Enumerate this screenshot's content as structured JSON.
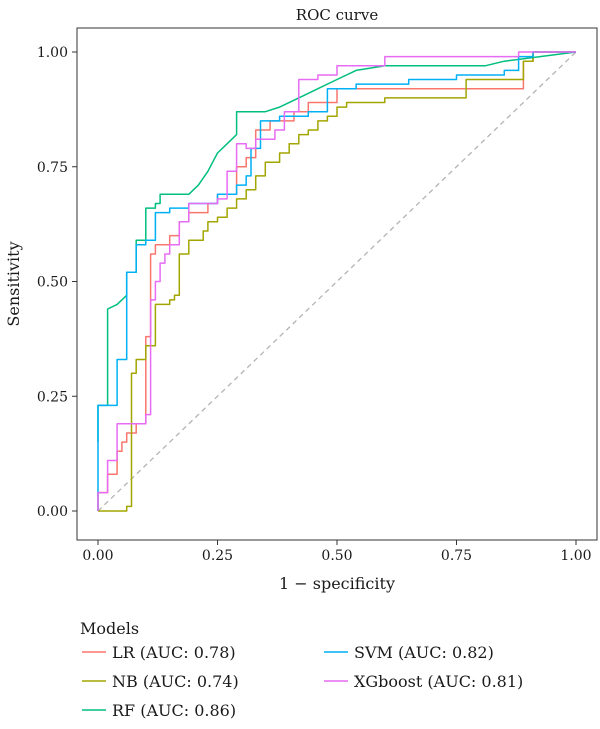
{
  "chart_data": {
    "type": "line",
    "title": "ROC curve",
    "xlabel": "1 − specificity",
    "ylabel": "Sensitivity",
    "xlim": [
      0,
      1
    ],
    "ylim": [
      0,
      1
    ],
    "x_ticks": [
      "0.00",
      "0.25",
      "0.50",
      "0.75",
      "1.00"
    ],
    "y_ticks": [
      "0.00",
      "0.25",
      "0.50",
      "0.75",
      "1.00"
    ],
    "grid": false,
    "reference_line": {
      "from": [
        0,
        0
      ],
      "to": [
        1,
        1
      ],
      "style": "dashed",
      "color": "#b3b3b3"
    },
    "legend": {
      "title": "Models",
      "position": "bottom",
      "columns": 2
    },
    "series": [
      {
        "name": "LR (AUC: 0.78)",
        "color": "#F8766D",
        "points": [
          [
            0,
            0
          ],
          [
            0,
            0.04
          ],
          [
            0.02,
            0.04
          ],
          [
            0.02,
            0.08
          ],
          [
            0.04,
            0.08
          ],
          [
            0.04,
            0.13
          ],
          [
            0.05,
            0.13
          ],
          [
            0.05,
            0.15
          ],
          [
            0.06,
            0.15
          ],
          [
            0.06,
            0.17
          ],
          [
            0.08,
            0.17
          ],
          [
            0.08,
            0.19
          ],
          [
            0.1,
            0.19
          ],
          [
            0.1,
            0.38
          ],
          [
            0.11,
            0.38
          ],
          [
            0.11,
            0.56
          ],
          [
            0.12,
            0.56
          ],
          [
            0.12,
            0.58
          ],
          [
            0.15,
            0.58
          ],
          [
            0.15,
            0.6
          ],
          [
            0.17,
            0.6
          ],
          [
            0.17,
            0.63
          ],
          [
            0.19,
            0.63
          ],
          [
            0.19,
            0.65
          ],
          [
            0.23,
            0.65
          ],
          [
            0.23,
            0.67
          ],
          [
            0.25,
            0.67
          ],
          [
            0.25,
            0.69
          ],
          [
            0.29,
            0.69
          ],
          [
            0.29,
            0.75
          ],
          [
            0.31,
            0.75
          ],
          [
            0.31,
            0.77
          ],
          [
            0.33,
            0.77
          ],
          [
            0.33,
            0.83
          ],
          [
            0.36,
            0.83
          ],
          [
            0.36,
            0.85
          ],
          [
            0.41,
            0.85
          ],
          [
            0.41,
            0.87
          ],
          [
            0.44,
            0.87
          ],
          [
            0.44,
            0.89
          ],
          [
            0.5,
            0.89
          ],
          [
            0.5,
            0.92
          ],
          [
            0.89,
            0.92
          ],
          [
            0.89,
            0.98
          ],
          [
            0.91,
            0.98
          ],
          [
            0.91,
            1
          ],
          [
            1,
            1
          ]
        ]
      },
      {
        "name": "NB (AUC: 0.74)",
        "color": "#A3A500",
        "points": [
          [
            0,
            0
          ],
          [
            0.06,
            0
          ],
          [
            0.06,
            0.01
          ],
          [
            0.07,
            0.01
          ],
          [
            0.07,
            0.3
          ],
          [
            0.08,
            0.3
          ],
          [
            0.08,
            0.33
          ],
          [
            0.1,
            0.33
          ],
          [
            0.1,
            0.36
          ],
          [
            0.12,
            0.36
          ],
          [
            0.12,
            0.45
          ],
          [
            0.15,
            0.45
          ],
          [
            0.15,
            0.46
          ],
          [
            0.16,
            0.46
          ],
          [
            0.16,
            0.47
          ],
          [
            0.17,
            0.47
          ],
          [
            0.17,
            0.56
          ],
          [
            0.19,
            0.56
          ],
          [
            0.19,
            0.59
          ],
          [
            0.22,
            0.59
          ],
          [
            0.22,
            0.61
          ],
          [
            0.23,
            0.61
          ],
          [
            0.23,
            0.63
          ],
          [
            0.25,
            0.63
          ],
          [
            0.25,
            0.64
          ],
          [
            0.27,
            0.64
          ],
          [
            0.27,
            0.66
          ],
          [
            0.29,
            0.66
          ],
          [
            0.29,
            0.68
          ],
          [
            0.31,
            0.68
          ],
          [
            0.31,
            0.7
          ],
          [
            0.33,
            0.7
          ],
          [
            0.33,
            0.73
          ],
          [
            0.35,
            0.73
          ],
          [
            0.35,
            0.76
          ],
          [
            0.38,
            0.76
          ],
          [
            0.38,
            0.78
          ],
          [
            0.4,
            0.78
          ],
          [
            0.4,
            0.8
          ],
          [
            0.42,
            0.8
          ],
          [
            0.42,
            0.82
          ],
          [
            0.44,
            0.82
          ],
          [
            0.44,
            0.83
          ],
          [
            0.46,
            0.83
          ],
          [
            0.46,
            0.85
          ],
          [
            0.48,
            0.85
          ],
          [
            0.48,
            0.86
          ],
          [
            0.5,
            0.86
          ],
          [
            0.5,
            0.88
          ],
          [
            0.52,
            0.88
          ],
          [
            0.52,
            0.89
          ],
          [
            0.6,
            0.89
          ],
          [
            0.6,
            0.9
          ],
          [
            0.77,
            0.9
          ],
          [
            0.77,
            0.94
          ],
          [
            0.89,
            0.94
          ],
          [
            0.89,
            0.98
          ],
          [
            0.91,
            0.98
          ],
          [
            0.91,
            1
          ],
          [
            1,
            1
          ]
        ]
      },
      {
        "name": "RF (AUC: 0.86)",
        "color": "#00BF7D",
        "points": [
          [
            0,
            0.15
          ],
          [
            0,
            0.23
          ],
          [
            0.02,
            0.23
          ],
          [
            0.02,
            0.44
          ],
          [
            0.04,
            0.45
          ],
          [
            0.06,
            0.47
          ],
          [
            0.06,
            0.52
          ],
          [
            0.08,
            0.52
          ],
          [
            0.08,
            0.59
          ],
          [
            0.1,
            0.59
          ],
          [
            0.1,
            0.66
          ],
          [
            0.12,
            0.66
          ],
          [
            0.12,
            0.67
          ],
          [
            0.13,
            0.67
          ],
          [
            0.13,
            0.69
          ],
          [
            0.19,
            0.69
          ],
          [
            0.21,
            0.71
          ],
          [
            0.23,
            0.74
          ],
          [
            0.25,
            0.78
          ],
          [
            0.27,
            0.8
          ],
          [
            0.29,
            0.82
          ],
          [
            0.29,
            0.87
          ],
          [
            0.35,
            0.87
          ],
          [
            0.38,
            0.88
          ],
          [
            0.42,
            0.9
          ],
          [
            0.46,
            0.92
          ],
          [
            0.5,
            0.94
          ],
          [
            0.54,
            0.96
          ],
          [
            0.6,
            0.97
          ],
          [
            0.81,
            0.97
          ],
          [
            0.85,
            0.98
          ],
          [
            1,
            1
          ]
        ]
      },
      {
        "name": "SVM (AUC: 0.82)",
        "color": "#00B0F6",
        "points": [
          [
            0,
            0
          ],
          [
            0,
            0.23
          ],
          [
            0.04,
            0.23
          ],
          [
            0.04,
            0.33
          ],
          [
            0.06,
            0.33
          ],
          [
            0.06,
            0.52
          ],
          [
            0.08,
            0.52
          ],
          [
            0.08,
            0.58
          ],
          [
            0.1,
            0.58
          ],
          [
            0.1,
            0.59
          ],
          [
            0.12,
            0.59
          ],
          [
            0.12,
            0.65
          ],
          [
            0.15,
            0.65
          ],
          [
            0.15,
            0.66
          ],
          [
            0.19,
            0.66
          ],
          [
            0.19,
            0.67
          ],
          [
            0.25,
            0.67
          ],
          [
            0.25,
            0.69
          ],
          [
            0.29,
            0.69
          ],
          [
            0.29,
            0.71
          ],
          [
            0.31,
            0.71
          ],
          [
            0.31,
            0.73
          ],
          [
            0.32,
            0.73
          ],
          [
            0.32,
            0.79
          ],
          [
            0.34,
            0.79
          ],
          [
            0.34,
            0.85
          ],
          [
            0.38,
            0.85
          ],
          [
            0.38,
            0.86
          ],
          [
            0.44,
            0.86
          ],
          [
            0.44,
            0.87
          ],
          [
            0.48,
            0.87
          ],
          [
            0.48,
            0.92
          ],
          [
            0.54,
            0.92
          ],
          [
            0.54,
            0.93
          ],
          [
            0.65,
            0.93
          ],
          [
            0.65,
            0.94
          ],
          [
            0.75,
            0.94
          ],
          [
            0.75,
            0.95
          ],
          [
            0.85,
            0.95
          ],
          [
            0.85,
            0.96
          ],
          [
            0.88,
            0.96
          ],
          [
            0.88,
            0.99
          ],
          [
            0.91,
            0.99
          ],
          [
            0.91,
            1
          ],
          [
            1,
            1
          ]
        ]
      },
      {
        "name": "XGboost (AUC: 0.81)",
        "color": "#E76BF3",
        "points": [
          [
            0,
            0
          ],
          [
            0,
            0.04
          ],
          [
            0.02,
            0.04
          ],
          [
            0.02,
            0.11
          ],
          [
            0.04,
            0.11
          ],
          [
            0.04,
            0.19
          ],
          [
            0.1,
            0.19
          ],
          [
            0.1,
            0.21
          ],
          [
            0.11,
            0.21
          ],
          [
            0.11,
            0.46
          ],
          [
            0.12,
            0.46
          ],
          [
            0.12,
            0.5
          ],
          [
            0.13,
            0.5
          ],
          [
            0.13,
            0.54
          ],
          [
            0.14,
            0.54
          ],
          [
            0.14,
            0.56
          ],
          [
            0.15,
            0.56
          ],
          [
            0.15,
            0.58
          ],
          [
            0.17,
            0.58
          ],
          [
            0.17,
            0.63
          ],
          [
            0.19,
            0.63
          ],
          [
            0.19,
            0.67
          ],
          [
            0.25,
            0.67
          ],
          [
            0.25,
            0.68
          ],
          [
            0.27,
            0.68
          ],
          [
            0.27,
            0.74
          ],
          [
            0.29,
            0.74
          ],
          [
            0.29,
            0.8
          ],
          [
            0.31,
            0.8
          ],
          [
            0.31,
            0.79
          ],
          [
            0.33,
            0.79
          ],
          [
            0.33,
            0.81
          ],
          [
            0.37,
            0.81
          ],
          [
            0.37,
            0.83
          ],
          [
            0.39,
            0.83
          ],
          [
            0.39,
            0.87
          ],
          [
            0.42,
            0.87
          ],
          [
            0.42,
            0.94
          ],
          [
            0.46,
            0.94
          ],
          [
            0.46,
            0.95
          ],
          [
            0.5,
            0.95
          ],
          [
            0.5,
            0.97
          ],
          [
            0.6,
            0.97
          ],
          [
            0.6,
            0.99
          ],
          [
            0.83,
            0.99
          ],
          [
            0.83,
            0.99
          ],
          [
            0.88,
            0.99
          ],
          [
            0.88,
            1
          ],
          [
            1,
            1
          ]
        ]
      }
    ]
  }
}
